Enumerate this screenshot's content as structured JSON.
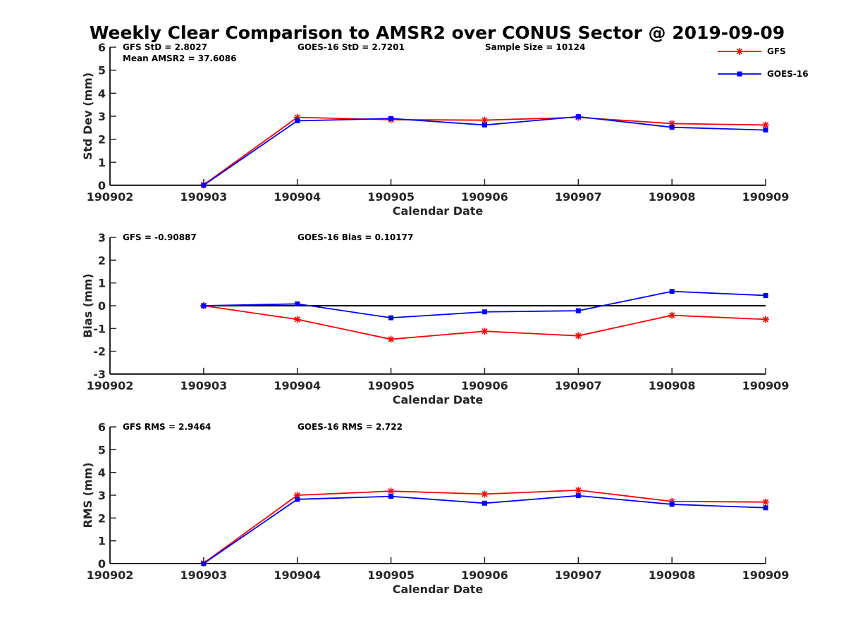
{
  "title": "Weekly Clear Comparison to AMSR2 over CONUS Sector @ 2019-09-09",
  "legend": [
    {
      "label": "GFS",
      "color": "#ff0000",
      "marker": "asterisk"
    },
    {
      "label": "GOES-16",
      "color": "#0000ff",
      "marker": "square"
    }
  ],
  "chart_data": [
    {
      "type": "line",
      "xlabel": "Calendar Date",
      "ylabel": "Std Dev (mm)",
      "ylim": [
        0,
        6
      ],
      "yticks": [
        "0",
        "1",
        "2",
        "3",
        "4",
        "5",
        "6"
      ],
      "categories": [
        "190902",
        "190903",
        "190904",
        "190905",
        "190906",
        "190907",
        "190908",
        "190909"
      ],
      "series": [
        {
          "name": "GFS",
          "color": "#ff0000",
          "values": [
            null,
            0.02,
            2.95,
            2.85,
            2.83,
            2.95,
            2.68,
            2.62
          ]
        },
        {
          "name": "GOES-16",
          "color": "#0000ff",
          "values": [
            null,
            0.0,
            2.8,
            2.9,
            2.62,
            2.98,
            2.52,
            2.4
          ]
        }
      ],
      "annotations": [
        {
          "text": "GFS StD = 2.8027",
          "pos": "top-left"
        },
        {
          "text": "Mean AMSR2 = 37.6086",
          "pos": "top-left-2"
        },
        {
          "text": "GOES-16 StD = 2.7201",
          "pos": "top-mid"
        },
        {
          "text": "Sample Size = 10124",
          "pos": "top-right"
        }
      ]
    },
    {
      "type": "line",
      "xlabel": "Calendar Date",
      "ylabel": "Bias (mm)",
      "ylim": [
        -3,
        3
      ],
      "yticks": [
        "-3",
        "-2",
        "-1",
        "0",
        "1",
        "2",
        "3"
      ],
      "zero_line": true,
      "categories": [
        "190902",
        "190903",
        "190904",
        "190905",
        "190906",
        "190907",
        "190908",
        "190909"
      ],
      "series": [
        {
          "name": "GFS",
          "color": "#ff0000",
          "values": [
            null,
            0.0,
            -0.6,
            -1.47,
            -1.12,
            -1.32,
            -0.42,
            -0.6
          ]
        },
        {
          "name": "GOES-16",
          "color": "#0000ff",
          "values": [
            null,
            0.0,
            0.08,
            -0.53,
            -0.27,
            -0.22,
            0.63,
            0.45
          ]
        }
      ],
      "annotations": [
        {
          "text": "GFS = -0.90887",
          "pos": "top-left"
        },
        {
          "text": "GOES-16 Bias  = 0.10177",
          "pos": "top-mid"
        }
      ]
    },
    {
      "type": "line",
      "xlabel": "Calendar Date",
      "ylabel": "RMS (mm)",
      "ylim": [
        0,
        6
      ],
      "yticks": [
        "0",
        "1",
        "2",
        "3",
        "4",
        "5",
        "6"
      ],
      "categories": [
        "190902",
        "190903",
        "190904",
        "190905",
        "190906",
        "190907",
        "190908",
        "190909"
      ],
      "series": [
        {
          "name": "GFS",
          "color": "#ff0000",
          "values": [
            null,
            0.02,
            3.0,
            3.18,
            3.05,
            3.22,
            2.73,
            2.7
          ]
        },
        {
          "name": "GOES-16",
          "color": "#0000ff",
          "values": [
            null,
            0.0,
            2.82,
            2.95,
            2.65,
            2.98,
            2.6,
            2.45
          ]
        }
      ],
      "annotations": [
        {
          "text": "GFS RMS = 2.9464",
          "pos": "top-left"
        },
        {
          "text": "GOES-16 RMS = 2.722",
          "pos": "top-mid"
        }
      ]
    }
  ]
}
